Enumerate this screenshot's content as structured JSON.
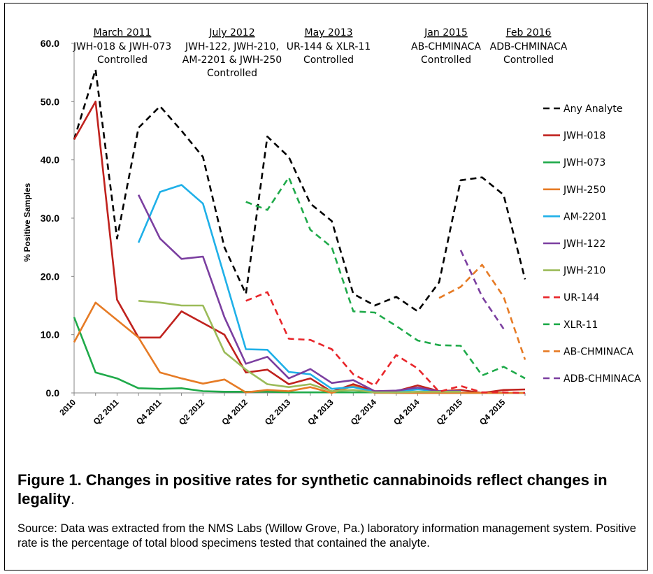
{
  "figure": {
    "title_bold": "Figure 1. Changes in positive rates for synthetic cannabinoids reflect changes in legality",
    "title_tail": ".",
    "source": "Source: Data was extracted from the NMS Labs (Willow Grove, Pa.) laboratory information management system. Positive rate is the percentage of total blood specimens tested that contained the analyte."
  },
  "chart_data": {
    "type": "line",
    "title": "",
    "xlabel": "",
    "ylabel": "% Positive Samples",
    "ylim": [
      0,
      60
    ],
    "yticks": [
      "0.0",
      "10.0",
      "20.0",
      "30.0",
      "40.0",
      "50.0",
      "60.0"
    ],
    "x": [
      "2010",
      "Q1 2011",
      "Q2 2011",
      "Q3 2011",
      "Q4 2011",
      "Q1 2012",
      "Q2 2012",
      "Q3 2012",
      "Q4 2012",
      "Q1 2013",
      "Q2 2013",
      "Q3 2013",
      "Q4 2013",
      "Q1 2014",
      "Q2 2014",
      "Q3 2014",
      "Q4 2014",
      "Q1 2015",
      "Q2 2015",
      "Q3 2015",
      "Q4 2015",
      "Q1 2016"
    ],
    "x_tick_labels": [
      "2010",
      "",
      "Q2 2011",
      "",
      "Q4 2011",
      "",
      "Q2 2012",
      "",
      "Q4 2012",
      "",
      "Q2 2013",
      "",
      "Q4 2013",
      "",
      "Q2 2014",
      "",
      "Q4 2014",
      "",
      "Q2 2015",
      "",
      "Q4 2015",
      ""
    ],
    "grid": false,
    "legend_position": "right",
    "series": [
      {
        "name": "Any Analyte",
        "color": "#000000",
        "dash": true,
        "values": [
          43.5,
          55.5,
          26.5,
          45.5,
          49.2,
          45,
          40.5,
          25,
          17,
          44,
          40.5,
          32.5,
          29.5,
          17,
          15,
          16.5,
          14,
          19,
          36.5,
          37,
          34,
          19.5
        ]
      },
      {
        "name": "JWH-018",
        "color": "#c0221e",
        "dash": false,
        "values": [
          43.5,
          50,
          16,
          9.5,
          9.5,
          14,
          12,
          10,
          3.5,
          4,
          1.5,
          2.5,
          0.2,
          1.5,
          0.3,
          0.3,
          1.3,
          0.3,
          0.5,
          0,
          0.5,
          0.6
        ]
      },
      {
        "name": "JWH-073",
        "color": "#1faa4a",
        "dash": false,
        "values": [
          13,
          3.5,
          2.5,
          0.8,
          0.7,
          0.8,
          0.3,
          0.2,
          0.2,
          0.2,
          0.1,
          0.1,
          0.1,
          0.1,
          0.1,
          0,
          0,
          0,
          0,
          0,
          0,
          0
        ]
      },
      {
        "name": "JWH-250",
        "color": "#e67b25",
        "dash": false,
        "values": [
          8.7,
          15.5,
          12.5,
          9.5,
          3.5,
          2.5,
          1.6,
          2.3,
          0.1,
          0.5,
          0.3,
          1,
          0,
          1.2,
          0,
          0,
          0,
          0,
          0,
          0,
          0,
          0
        ]
      },
      {
        "name": "AM-2201",
        "color": "#1fb0e8",
        "dash": false,
        "values": [
          null,
          null,
          null,
          25.8,
          34.5,
          35.7,
          32.5,
          20,
          7.5,
          7.4,
          3.6,
          3.2,
          0.7,
          1,
          0.2,
          0.2,
          0.6,
          0.3,
          0.3,
          null,
          null,
          null
        ]
      },
      {
        "name": "JWH-122",
        "color": "#7b3fa0",
        "dash": false,
        "values": [
          null,
          null,
          null,
          34,
          26.5,
          23,
          23.4,
          13,
          5,
          6.2,
          2.5,
          4.1,
          1.7,
          2.2,
          0.3,
          0.4,
          0.9,
          0.3,
          0.3,
          null,
          null,
          null
        ]
      },
      {
        "name": "JWH-210",
        "color": "#9bbb59",
        "dash": false,
        "values": [
          null,
          null,
          null,
          15.8,
          15.5,
          15,
          15,
          7,
          4,
          1.5,
          1,
          1.5,
          0.3,
          0.5,
          0.1,
          0.1,
          0.2,
          0.2,
          0.2,
          null,
          null,
          null
        ]
      },
      {
        "name": "UR-144",
        "color": "#e8252a",
        "dash": true,
        "values": [
          null,
          null,
          null,
          null,
          null,
          null,
          null,
          null,
          15.8,
          17.3,
          9.3,
          9.1,
          7.5,
          3.2,
          1.3,
          6.5,
          4.2,
          0.2,
          1.2,
          0.1,
          0.1,
          0
        ]
      },
      {
        "name": "XLR-11",
        "color": "#1faa4a",
        "dash": true,
        "values": [
          null,
          null,
          null,
          null,
          null,
          null,
          null,
          null,
          32.8,
          31.4,
          37,
          28,
          25,
          14,
          13.8,
          11.5,
          9,
          8.2,
          8.1,
          3,
          4.5,
          2.5
        ]
      },
      {
        "name": "AB-CHMINACA",
        "color": "#e67b25",
        "dash": true,
        "values": [
          null,
          null,
          null,
          null,
          null,
          null,
          null,
          null,
          null,
          null,
          null,
          null,
          null,
          null,
          null,
          null,
          null,
          16.3,
          18.2,
          22,
          16.5,
          5.7
        ]
      },
      {
        "name": "ADB-CHMINACA",
        "color": "#7b3fa0",
        "dash": true,
        "values": [
          null,
          null,
          null,
          null,
          null,
          null,
          null,
          null,
          null,
          null,
          null,
          null,
          null,
          null,
          null,
          null,
          null,
          null,
          24.5,
          16.5,
          11,
          null
        ]
      }
    ],
    "annotations": [
      {
        "date": "March 2011",
        "lines": [
          "JWH-018 & JWH-073",
          "Controlled"
        ]
      },
      {
        "date": "July 2012",
        "lines": [
          "JWH-122, JWH-210,",
          "AM-2201 & JWH-250",
          "Controlled"
        ]
      },
      {
        "date": "May 2013",
        "lines": [
          "UR-144 & XLR-11",
          "Controlled"
        ]
      },
      {
        "date": "Jan 2015",
        "lines": [
          "AB-CHMINACA",
          "Controlled"
        ]
      },
      {
        "date": "Feb 2016",
        "lines": [
          "ADB-CHMINACA",
          "Controlled"
        ]
      }
    ]
  }
}
